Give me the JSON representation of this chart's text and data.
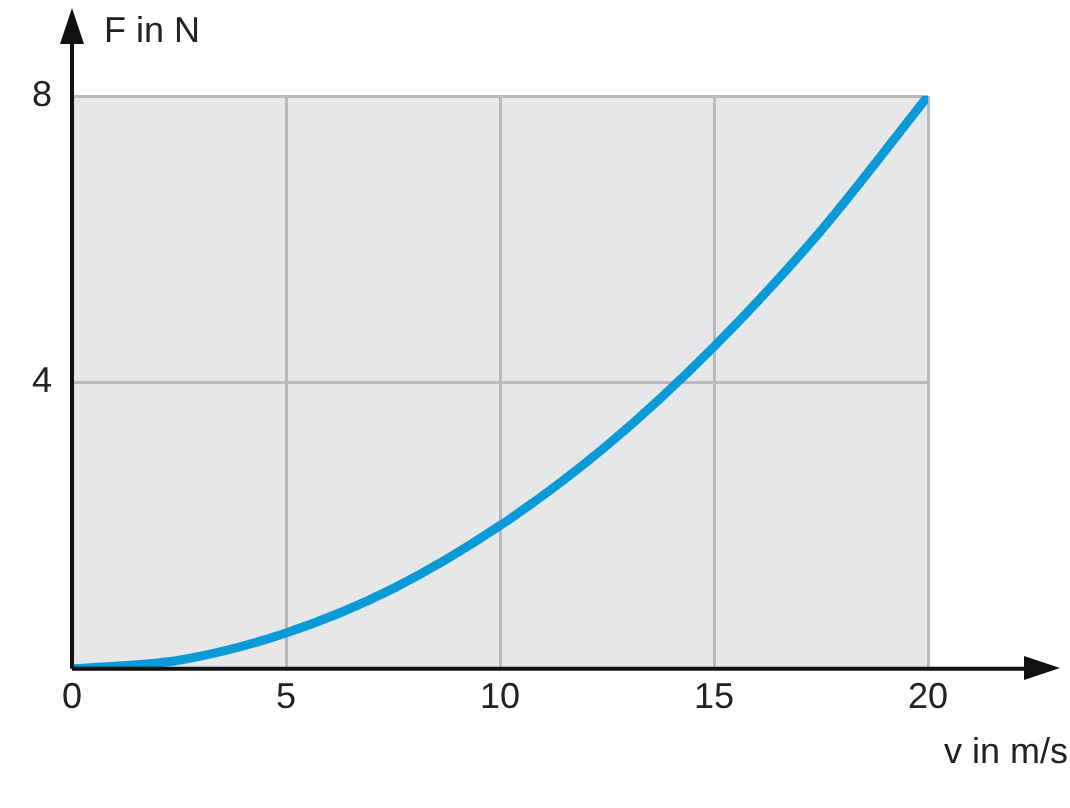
{
  "chart_data": {
    "type": "line",
    "xlabel": "v in m/s",
    "ylabel": "F in N",
    "x": [
      0,
      2.5,
      5,
      7.5,
      10,
      12.5,
      15,
      17.5,
      20
    ],
    "series": [
      {
        "color": "#0a9ad7",
        "values": [
          0,
          0.12,
          0.5,
          1.12,
          2,
          3.12,
          4.5,
          6.12,
          8
        ]
      }
    ],
    "xlim": [
      0,
      20
    ],
    "xticks": [
      0,
      5,
      10,
      15,
      20
    ],
    "ylim": [
      0,
      8
    ],
    "yticks": [
      {
        "value": 0,
        "label": null
      },
      4,
      8
    ],
    "grid": true,
    "legend": false,
    "marker": "none",
    "line_style": "solid"
  }
}
